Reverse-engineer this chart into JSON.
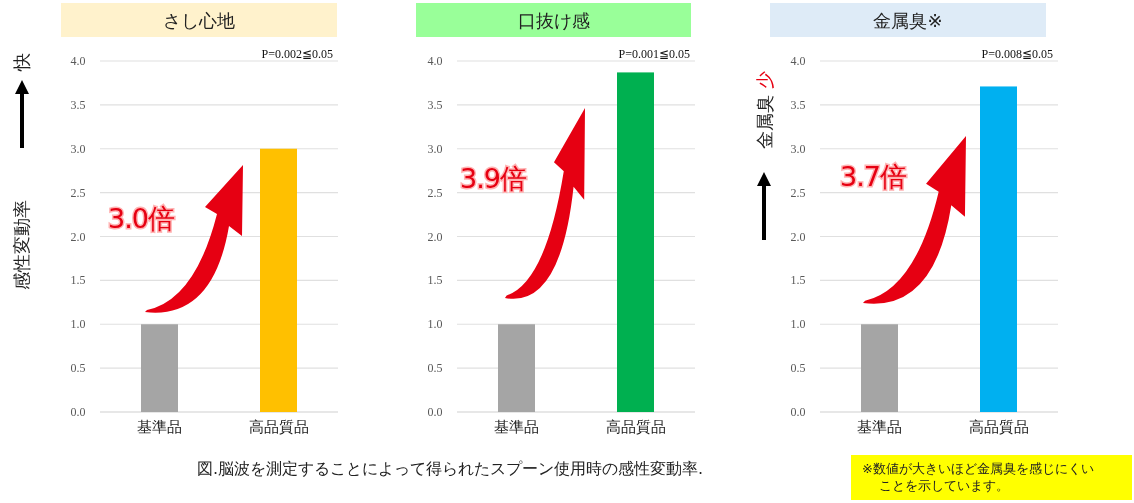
{
  "chart_data": [
    {
      "type": "bar",
      "title": "さし心地",
      "ylabel": "感性変動率",
      "categories": [
        "基準品",
        "高品質品"
      ],
      "values": [
        1.0,
        3.0
      ],
      "colors": [
        "#a5a5a5",
        "#ffc000"
      ],
      "ylim": [
        0,
        4
      ],
      "yticks": [
        {
          "value": 0,
          "label": "0.0"
        },
        {
          "value": 0.5,
          "label": "0.5"
        },
        {
          "value": 1,
          "label": "1.0"
        },
        {
          "value": 1.5,
          "label": "1.5"
        },
        {
          "value": 2,
          "label": "2.0"
        },
        {
          "value": 2.5,
          "label": "2.5"
        },
        {
          "value": 3,
          "label": "3.0"
        },
        {
          "value": 3.5,
          "label": "3.5"
        },
        {
          "value": 4,
          "label": "4.0"
        }
      ],
      "grid": "y",
      "annotations": [
        "快",
        "3.0倍",
        "P=0.002≦0.05",
        "図.脳波を測定することによって得られたスプーン使用時の感性変動率."
      ]
    },
    {
      "type": "bar",
      "title": "口抜け感",
      "categories": [
        "基準品",
        "高品質品"
      ],
      "values": [
        1.0,
        3.87
      ],
      "colors": [
        "#a5a5a5",
        "#00b050"
      ],
      "ylim": [
        0,
        4
      ],
      "yticks": [
        {
          "value": 0,
          "label": "0.0"
        },
        {
          "value": 0.5,
          "label": "0.5"
        },
        {
          "value": 1,
          "label": "1.0"
        },
        {
          "value": 1.5,
          "label": "1.5"
        },
        {
          "value": 2,
          "label": "2.0"
        },
        {
          "value": 2.5,
          "label": "2.5"
        },
        {
          "value": 3,
          "label": "3.0"
        },
        {
          "value": 3.5,
          "label": "3.5"
        },
        {
          "value": 4,
          "label": "4.0"
        }
      ],
      "grid": "y",
      "annotations": [
        "3.9倍",
        "P=0.001≦0.05"
      ]
    },
    {
      "type": "bar",
      "title": "金属臭※",
      "ylabel": "金属臭",
      "categories": [
        "基準品",
        "高品質品"
      ],
      "values": [
        1.0,
        3.71
      ],
      "colors": [
        "#a5a5a5",
        "#00b0f0"
      ],
      "ylim": [
        0,
        4
      ],
      "yticks": [
        {
          "value": 0,
          "label": "0.0"
        },
        {
          "value": 0.5,
          "label": "0.5"
        },
        {
          "value": 1,
          "label": "1.0"
        },
        {
          "value": 1.5,
          "label": "1.5"
        },
        {
          "value": 2,
          "label": "2.0"
        },
        {
          "value": 2.5,
          "label": "2.5"
        },
        {
          "value": 3,
          "label": "3.0"
        },
        {
          "value": 3.5,
          "label": "3.5"
        },
        {
          "value": 4,
          "label": "4.0"
        }
      ],
      "grid": "y",
      "annotations": [
        "少",
        "3.7倍",
        "P=0.008≦0.05",
        "※数値が大きいほど金属臭を感じにくい",
        "ことを示しています。"
      ]
    }
  ]
}
